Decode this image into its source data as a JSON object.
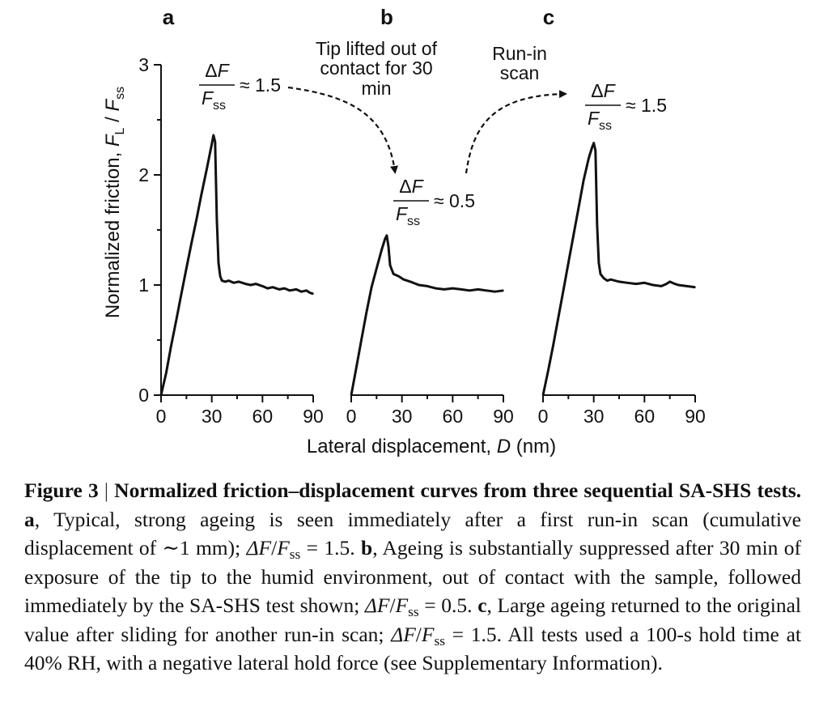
{
  "chart_data": {
    "type": "line",
    "y_axis": {
      "label": "Normalized friction, F_L / F_ss",
      "label_parts": {
        "main": "Normalized friction, ",
        "f": "F",
        "l": "L",
        "slash": " / ",
        "f2": "F",
        "ss": "ss"
      },
      "ticks": [
        "0",
        "1",
        "2",
        "3"
      ],
      "ylim": [
        0,
        3
      ]
    },
    "x_axis": {
      "label": "Lateral displacement, D (nm)",
      "label_parts": {
        "main": "Lateral displacement, ",
        "d": "D",
        "unit": " (nm)"
      },
      "ticks": [
        "0",
        "30",
        "60",
        "90"
      ],
      "xlim": [
        0,
        90
      ]
    },
    "panels": [
      {
        "label": "a",
        "annotation": {
          "num": "ΔF",
          "den": "F",
          "den_sub": "ss",
          "approx": "≈ 1.5"
        },
        "x": [
          0,
          3,
          6,
          9,
          12,
          15,
          18,
          21,
          24,
          27,
          30,
          31,
          32,
          33,
          34,
          35,
          36,
          38,
          40,
          43,
          46,
          50,
          53,
          56,
          60,
          63,
          66,
          70,
          73,
          76,
          80,
          83,
          86,
          88,
          90
        ],
        "y": [
          0,
          0.2,
          0.45,
          0.68,
          0.92,
          1.15,
          1.38,
          1.6,
          1.83,
          2.05,
          2.28,
          2.36,
          2.3,
          1.6,
          1.2,
          1.08,
          1.04,
          1.03,
          1.04,
          1.02,
          1.03,
          1.01,
          1.0,
          1.01,
          0.99,
          0.97,
          0.98,
          0.96,
          0.97,
          0.95,
          0.96,
          0.94,
          0.95,
          0.93,
          0.92
        ]
      },
      {
        "label": "b",
        "annotation": {
          "num": "ΔF",
          "den": "F",
          "den_sub": "ss",
          "approx": "≈ 0.5"
        },
        "x": [
          0,
          3,
          6,
          9,
          12,
          15,
          18,
          20,
          21,
          22,
          23,
          25,
          28,
          31,
          35,
          40,
          45,
          50,
          55,
          60,
          65,
          70,
          75,
          80,
          85,
          90
        ],
        "y": [
          0,
          0.25,
          0.5,
          0.75,
          0.98,
          1.15,
          1.32,
          1.42,
          1.45,
          1.35,
          1.18,
          1.1,
          1.08,
          1.05,
          1.03,
          1.0,
          0.99,
          0.97,
          0.96,
          0.97,
          0.96,
          0.95,
          0.96,
          0.95,
          0.94,
          0.95
        ]
      },
      {
        "label": "c",
        "annotation": {
          "num": "ΔF",
          "den": "F",
          "den_sub": "ss",
          "approx": "≈ 1.5"
        },
        "x": [
          0,
          3,
          6,
          9,
          12,
          15,
          18,
          21,
          24,
          27,
          29,
          30,
          31,
          32,
          33,
          34,
          36,
          38,
          40,
          45,
          50,
          55,
          60,
          65,
          70,
          73,
          75,
          78,
          80,
          85,
          90
        ],
        "y": [
          0,
          0.22,
          0.45,
          0.7,
          0.95,
          1.2,
          1.45,
          1.7,
          1.95,
          2.15,
          2.25,
          2.29,
          2.22,
          1.55,
          1.2,
          1.1,
          1.06,
          1.04,
          1.05,
          1.03,
          1.02,
          1.01,
          1.02,
          1.0,
          0.99,
          1.01,
          1.03,
          1.01,
          1.0,
          0.99,
          0.98
        ]
      }
    ],
    "arrows": [
      {
        "label_lines": [
          "Tip lifted out of",
          "contact for 30",
          "min"
        ]
      },
      {
        "label_lines": [
          "Run-in",
          "scan"
        ]
      }
    ]
  },
  "caption": {
    "figure_number": "Figure 3",
    "figure_title": "Normalized friction–displacement curves from three sequential SA-SHS tests.",
    "a_label": "a",
    "a_text": ", Typical, strong ageing is seen immediately after a first run-in scan (cumulative displacement of ∼1 mm); ",
    "a_value": " = 1.5. ",
    "b_label": "b",
    "b_text": ", Ageing is substantially suppressed after 30 min of exposure of the tip to the humid environment, out of contact with the sample, followed immediately by the SA-SHS test shown; ",
    "b_value": " = 0.5. ",
    "c_label": "c",
    "c_text": ", Large ageing returned to the original value after sliding for another run-in scan; ",
    "c_value": " = 1.5. ",
    "tail": "All tests used a 100-s hold time at 40% RH, with a negative lateral hold force (see Supplementary Information).",
    "ratio_num": "ΔF",
    "ratio_slash": "/",
    "ratio_den": "F",
    "ratio_sub": "ss"
  }
}
